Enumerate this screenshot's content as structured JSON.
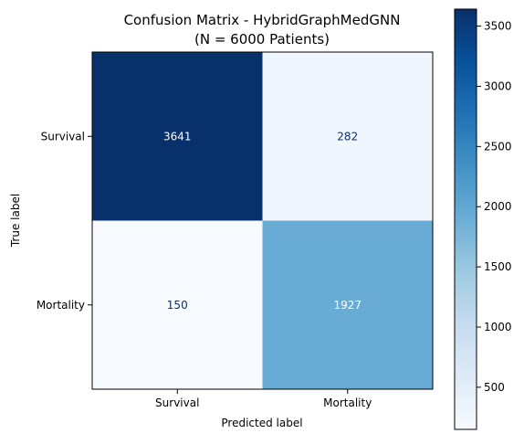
{
  "chart_data": {
    "type": "heatmap",
    "title_line1": "Confusion Matrix - HybridGraphMedGNN",
    "title_line2": "(N = 6000 Patients)",
    "xlabel": "Predicted label",
    "ylabel": "True label",
    "row_labels": [
      "Survival",
      "Mortality"
    ],
    "col_labels": [
      "Survival",
      "Mortality"
    ],
    "values": [
      [
        3641,
        282
      ],
      [
        150,
        1927
      ]
    ],
    "colormap": "Blues",
    "vmin": 150,
    "vmax": 3641,
    "colorbar_ticks": [
      500,
      1000,
      1500,
      2000,
      2500,
      3000,
      3500
    ],
    "text_color_dark": "#08306b",
    "text_color_light": "#ffffff"
  }
}
